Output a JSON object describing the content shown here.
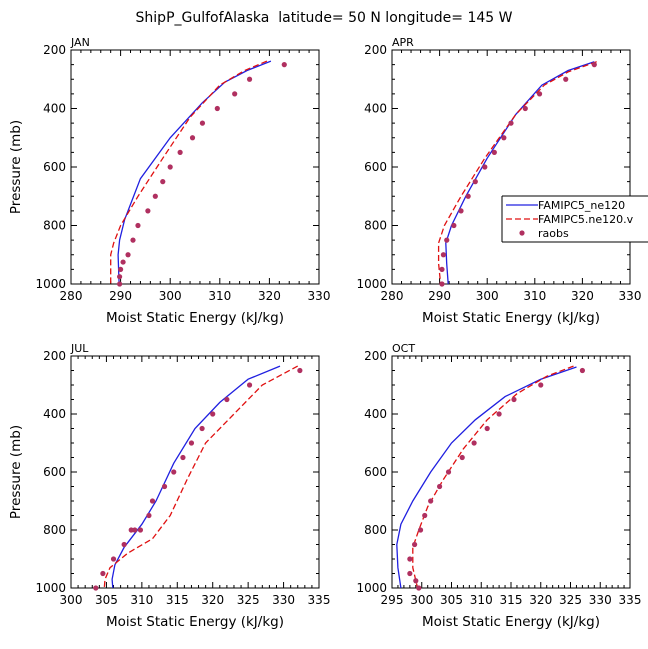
{
  "title": "ShipP_GulfofAlaska  latitude= 50 N longitude= 145 W",
  "colors": {
    "model1": "#2020e0",
    "model2": "#e01010",
    "obs": "#b03060"
  },
  "legend": {
    "entries": [
      {
        "label": "FAMIPC5_ne120",
        "style": "solid"
      },
      {
        "label": "FAMIPC5.ne120.v",
        "style": "dashed"
      },
      {
        "label": "raobs",
        "style": "dots"
      }
    ]
  },
  "chart_data": [
    {
      "type": "line",
      "title": "JAN",
      "xlabel": "Moist Static Energy (kJ/kg)",
      "ylabel": "Pressure (mb)",
      "xlim": [
        280,
        330
      ],
      "ylim": [
        1000,
        200
      ],
      "xticks": [
        280,
        290,
        300,
        310,
        320,
        330
      ],
      "yticks": [
        200,
        400,
        600,
        800,
        1000
      ],
      "series": [
        {
          "name": "FAMIPC5_ne120",
          "style": "solid",
          "x": [
            320.3,
            315.5,
            311,
            306.5,
            300,
            294,
            290.8,
            289.8,
            289.5,
            289.6,
            289.7
          ],
          "y": [
            238,
            270,
            310,
            380,
            500,
            640,
            780,
            850,
            900,
            950,
            1000
          ]
        },
        {
          "name": "FAMIPC5.ne120.v",
          "style": "dashed",
          "x": [
            319.5,
            315,
            310,
            304,
            298.5,
            293.5,
            290,
            288.6,
            288,
            288,
            288
          ],
          "y": [
            238,
            270,
            320,
            430,
            570,
            700,
            800,
            860,
            900,
            950,
            1000
          ]
        },
        {
          "name": "raobs",
          "style": "dots",
          "x": [
            323,
            316,
            313,
            309.5,
            306.5,
            304.5,
            302,
            300,
            298.5,
            297,
            295.5,
            293.5,
            292.5,
            291.5,
            290.5,
            290,
            289.8,
            289.8
          ],
          "y": [
            250,
            300,
            350,
            400,
            450,
            500,
            550,
            600,
            650,
            700,
            750,
            800,
            850,
            900,
            925,
            950,
            975,
            1000
          ]
        }
      ]
    },
    {
      "type": "line",
      "title": "APR",
      "xlabel": "Moist Static Energy (kJ/kg)",
      "ylabel": "",
      "xlim": [
        280,
        330
      ],
      "ylim": [
        1000,
        200
      ],
      "xticks": [
        280,
        290,
        300,
        310,
        320,
        330
      ],
      "yticks": [
        200,
        400,
        600,
        800,
        1000
      ],
      "series": [
        {
          "name": "FAMIPC5_ne120",
          "style": "solid",
          "x": [
            322.5,
            317,
            311.5,
            306,
            300,
            295.5,
            292.5,
            291.3,
            291.5,
            291.8
          ],
          "y": [
            240,
            270,
            320,
            420,
            570,
            700,
            800,
            860,
            930,
            1000
          ]
        },
        {
          "name": "FAMIPC5.ne120.v",
          "style": "dashed",
          "x": [
            323,
            317,
            312,
            306,
            299.5,
            294.5,
            291,
            289.8,
            289.8,
            290.2
          ],
          "y": [
            240,
            275,
            320,
            420,
            570,
            700,
            800,
            860,
            930,
            1000
          ]
        },
        {
          "name": "raobs",
          "style": "dots",
          "x": [
            322.5,
            316.5,
            311,
            308,
            305,
            303.5,
            301.5,
            299.5,
            297.5,
            296,
            294.5,
            293,
            291.5,
            290.8,
            290.5,
            290.5
          ],
          "y": [
            250,
            300,
            350,
            400,
            450,
            500,
            550,
            600,
            650,
            700,
            750,
            800,
            850,
            900,
            950,
            1000
          ]
        }
      ]
    },
    {
      "type": "line",
      "title": "JUL",
      "xlabel": "Moist Static Energy (kJ/kg)",
      "ylabel": "Pressure (mb)",
      "xlim": [
        300,
        335
      ],
      "ylim": [
        1000,
        200
      ],
      "xticks": [
        300,
        305,
        310,
        315,
        320,
        325,
        330,
        335
      ],
      "yticks": [
        200,
        400,
        600,
        800,
        1000
      ],
      "series": [
        {
          "name": "FAMIPC5_ne120",
          "style": "solid",
          "x": [
            329.5,
            325,
            321,
            317.5,
            314.5,
            312,
            310,
            307.5,
            306.2,
            305.8,
            305.9
          ],
          "y": [
            235,
            280,
            360,
            450,
            570,
            700,
            780,
            860,
            920,
            970,
            1000
          ]
        },
        {
          "name": "FAMIPC5.ne120.v",
          "style": "dashed",
          "x": [
            332,
            327,
            323,
            319,
            316.5,
            314,
            311.5,
            308,
            305.5,
            304.8,
            304.7
          ],
          "y": [
            235,
            300,
            400,
            500,
            620,
            750,
            830,
            880,
            930,
            970,
            1000
          ]
        },
        {
          "name": "raobs",
          "style": "dots",
          "x": [
            332.3,
            325.2,
            322,
            320,
            318.5,
            317,
            315.8,
            314.5,
            313.2,
            311.5,
            311,
            309.8,
            309,
            308.5,
            307.5,
            306,
            304.5,
            303.5
          ],
          "y": [
            250,
            300,
            350,
            400,
            450,
            500,
            550,
            600,
            650,
            700,
            750,
            800,
            800,
            800,
            850,
            900,
            950,
            1000
          ]
        }
      ]
    },
    {
      "type": "line",
      "title": "OCT",
      "xlabel": "Moist Static Energy (kJ/kg)",
      "ylabel": "",
      "xlim": [
        295,
        335
      ],
      "ylim": [
        1000,
        200
      ],
      "xticks": [
        295,
        300,
        305,
        310,
        315,
        320,
        325,
        330,
        335
      ],
      "yticks": [
        200,
        400,
        600,
        800,
        1000
      ],
      "series": [
        {
          "name": "FAMIPC5_ne120",
          "style": "solid",
          "x": [
            326,
            320,
            314,
            309,
            305,
            301.5,
            298.5,
            296.5,
            295.8,
            296,
            296.5
          ],
          "y": [
            238,
            280,
            340,
            420,
            500,
            600,
            700,
            780,
            850,
            930,
            1000
          ]
        },
        {
          "name": "FAMIPC5.ne120.v",
          "style": "dashed",
          "x": [
            325.5,
            321,
            316,
            311,
            307,
            303.5,
            301,
            299.5,
            298.5,
            298.5,
            299.3
          ],
          "y": [
            235,
            270,
            330,
            420,
            520,
            630,
            720,
            800,
            860,
            930,
            1000
          ]
        },
        {
          "name": "raobs",
          "style": "dots",
          "x": [
            327,
            320,
            315.5,
            313,
            311,
            308.8,
            306.8,
            304.5,
            303,
            301.5,
            300.5,
            299.8,
            298.8,
            298,
            298,
            299,
            299.5
          ],
          "y": [
            250,
            300,
            350,
            400,
            450,
            500,
            550,
            600,
            650,
            700,
            750,
            800,
            850,
            900,
            950,
            975,
            1000
          ]
        }
      ]
    }
  ]
}
